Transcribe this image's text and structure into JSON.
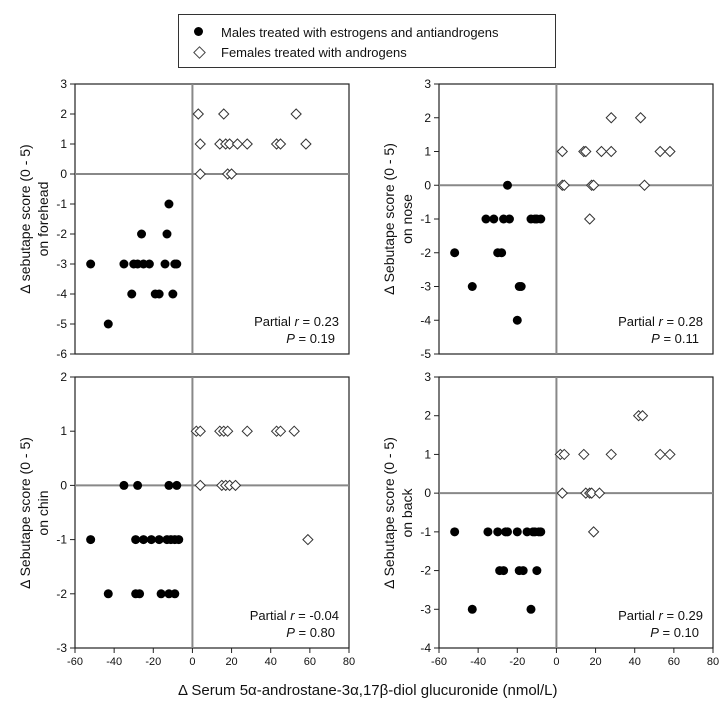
{
  "legend": {
    "males": "Males treated with estrogens and antiandrogens",
    "females": "Females treated with androgens"
  },
  "x_axis_title": "Δ Serum 5α-androstane-3α,17β-diol glucuronide (nmol/L)",
  "colors": {
    "male": "#000000",
    "female": "#ffffff",
    "zero_line": "#888888"
  },
  "chart_data": [
    {
      "type": "scatter",
      "panel": "top-left",
      "ylabel_line1": "Δ sebutape score (0 - 5)",
      "ylabel_line2": "on forehead",
      "xlim": [
        -60,
        80
      ],
      "ylim": [
        -6,
        3
      ],
      "xticks": [],
      "yticks": [
        -6,
        -5,
        -4,
        -3,
        -2,
        -1,
        0,
        1,
        2,
        3
      ],
      "annotation": {
        "line1_prefix": "Partial ",
        "line1_var": "r",
        "line1_value": " = 0.23",
        "line2_var": "P",
        "line2_value": " = 0.19"
      },
      "series": [
        {
          "name": "Males treated with estrogens and antiandrogens",
          "marker": "filled-circle",
          "points": [
            [
              -52,
              -3
            ],
            [
              -43,
              -5
            ],
            [
              -35,
              -3
            ],
            [
              -31,
              -4
            ],
            [
              -30,
              -3
            ],
            [
              -28,
              -3
            ],
            [
              -26,
              -2
            ],
            [
              -25,
              -3
            ],
            [
              -22,
              -3
            ],
            [
              -19,
              -4
            ],
            [
              -17,
              -4
            ],
            [
              -14,
              -3
            ],
            [
              -13,
              -2
            ],
            [
              -12,
              -1
            ],
            [
              -10,
              -4
            ],
            [
              -9,
              -3
            ],
            [
              -8,
              -3
            ]
          ]
        },
        {
          "name": "Females treated with androgens",
          "marker": "open-diamond",
          "points": [
            [
              3,
              2
            ],
            [
              4,
              1
            ],
            [
              4,
              0
            ],
            [
              14,
              1
            ],
            [
              16,
              2
            ],
            [
              17,
              1
            ],
            [
              18,
              0
            ],
            [
              19,
              1
            ],
            [
              20,
              0
            ],
            [
              23,
              1
            ],
            [
              28,
              1
            ],
            [
              43,
              1
            ],
            [
              45,
              1
            ],
            [
              53,
              2
            ],
            [
              58,
              1
            ]
          ]
        }
      ]
    },
    {
      "type": "scatter",
      "panel": "top-right",
      "ylabel_line1": "Δ Sebutape score (0 - 5)",
      "ylabel_line2": "on nose",
      "xlim": [
        -60,
        80
      ],
      "ylim": [
        -5,
        3
      ],
      "xticks": [],
      "yticks": [
        -5,
        -4,
        -3,
        -2,
        -1,
        0,
        1,
        2,
        3
      ],
      "annotation": {
        "line1_prefix": "Partial ",
        "line1_var": "r",
        "line1_value": " = 0.28",
        "line2_var": "P",
        "line2_value": " = 0.11"
      },
      "series": [
        {
          "name": "Males treated with estrogens and antiandrogens",
          "marker": "filled-circle",
          "points": [
            [
              -52,
              -2
            ],
            [
              -43,
              -3
            ],
            [
              -36,
              -1
            ],
            [
              -32,
              -1
            ],
            [
              -30,
              -2
            ],
            [
              -28,
              -2
            ],
            [
              -27,
              -1
            ],
            [
              -25,
              0
            ],
            [
              -24,
              -1
            ],
            [
              -20,
              -4
            ],
            [
              -19,
              -3
            ],
            [
              -18,
              -3
            ],
            [
              -13,
              -1
            ],
            [
              -11,
              -1
            ],
            [
              -10,
              -1
            ],
            [
              -8,
              -1
            ]
          ]
        },
        {
          "name": "Females treated with androgens",
          "marker": "open-diamond",
          "points": [
            [
              3,
              1
            ],
            [
              3,
              0
            ],
            [
              4,
              0
            ],
            [
              14,
              1
            ],
            [
              15,
              1
            ],
            [
              17,
              -1
            ],
            [
              18,
              0
            ],
            [
              19,
              0
            ],
            [
              23,
              1
            ],
            [
              28,
              2
            ],
            [
              28,
              1
            ],
            [
              43,
              2
            ],
            [
              45,
              0
            ],
            [
              53,
              1
            ],
            [
              58,
              1
            ]
          ]
        }
      ]
    },
    {
      "type": "scatter",
      "panel": "bottom-left",
      "ylabel_line1": "Δ Sebutape score (0 - 5)",
      "ylabel_line2": "on chin",
      "xlim": [
        -60,
        80
      ],
      "ylim": [
        -3,
        2
      ],
      "xticks": [
        -60,
        -40,
        -20,
        0,
        20,
        40,
        60,
        80
      ],
      "yticks": [
        -3,
        -2,
        -1,
        0,
        1,
        2
      ],
      "annotation": {
        "line1_prefix": "Partial ",
        "line1_var": "r",
        "line1_value": " = -0.04",
        "line2_var": "P",
        "line2_value": " = 0.80"
      },
      "series": [
        {
          "name": "Males treated with estrogens and antiandrogens",
          "marker": "filled-circle",
          "points": [
            [
              -52,
              -1
            ],
            [
              -43,
              -2
            ],
            [
              -35,
              0
            ],
            [
              -29,
              -2
            ],
            [
              -29,
              -1
            ],
            [
              -28,
              0
            ],
            [
              -27,
              -2
            ],
            [
              -25,
              -1
            ],
            [
              -21,
              -1
            ],
            [
              -17,
              -1
            ],
            [
              -16,
              -2
            ],
            [
              -13,
              -1
            ],
            [
              -12,
              0
            ],
            [
              -12,
              -2
            ],
            [
              -11,
              -1
            ],
            [
              -9,
              -1
            ],
            [
              -9,
              -2
            ],
            [
              -8,
              0
            ],
            [
              -7,
              -1
            ]
          ]
        },
        {
          "name": "Females treated with androgens",
          "marker": "open-diamond",
          "points": [
            [
              2,
              1
            ],
            [
              4,
              1
            ],
            [
              4,
              0
            ],
            [
              14,
              1
            ],
            [
              15,
              0
            ],
            [
              16,
              1
            ],
            [
              17,
              0
            ],
            [
              18,
              1
            ],
            [
              19,
              0
            ],
            [
              22,
              0
            ],
            [
              28,
              1
            ],
            [
              43,
              1
            ],
            [
              45,
              1
            ],
            [
              52,
              1
            ],
            [
              59,
              -1
            ]
          ]
        }
      ]
    },
    {
      "type": "scatter",
      "panel": "bottom-right",
      "ylabel_line1": "Δ Sebutape score (0 - 5)",
      "ylabel_line2": "on back",
      "xlim": [
        -60,
        80
      ],
      "ylim": [
        -4,
        3
      ],
      "xticks": [
        -60,
        -40,
        -20,
        0,
        20,
        40,
        60,
        80
      ],
      "yticks": [
        -4,
        -3,
        -2,
        -1,
        0,
        1,
        2,
        3
      ],
      "annotation": {
        "line1_prefix": "Partial ",
        "line1_var": "r",
        "line1_value": " = 0.29",
        "line2_var": "P",
        "line2_value": " = 0.10"
      },
      "series": [
        {
          "name": "Males treated with estrogens and antiandrogens",
          "marker": "filled-circle",
          "points": [
            [
              -52,
              -1
            ],
            [
              -43,
              -3
            ],
            [
              -35,
              -1
            ],
            [
              -30,
              -1
            ],
            [
              -29,
              -2
            ],
            [
              -27,
              -2
            ],
            [
              -26,
              -1
            ],
            [
              -25,
              -1
            ],
            [
              -20,
              -1
            ],
            [
              -19,
              -2
            ],
            [
              -17,
              -2
            ],
            [
              -15,
              -1
            ],
            [
              -13,
              -3
            ],
            [
              -12,
              -1
            ],
            [
              -11,
              -1
            ],
            [
              -10,
              -2
            ],
            [
              -9,
              -1
            ],
            [
              -8,
              -1
            ]
          ]
        },
        {
          "name": "Females treated with androgens",
          "marker": "open-diamond",
          "points": [
            [
              2,
              1
            ],
            [
              3,
              0
            ],
            [
              4,
              1
            ],
            [
              14,
              1
            ],
            [
              15,
              0
            ],
            [
              17,
              0
            ],
            [
              18,
              0
            ],
            [
              19,
              -1
            ],
            [
              22,
              0
            ],
            [
              28,
              1
            ],
            [
              42,
              2
            ],
            [
              44,
              2
            ],
            [
              53,
              1
            ],
            [
              58,
              1
            ]
          ]
        }
      ]
    }
  ]
}
